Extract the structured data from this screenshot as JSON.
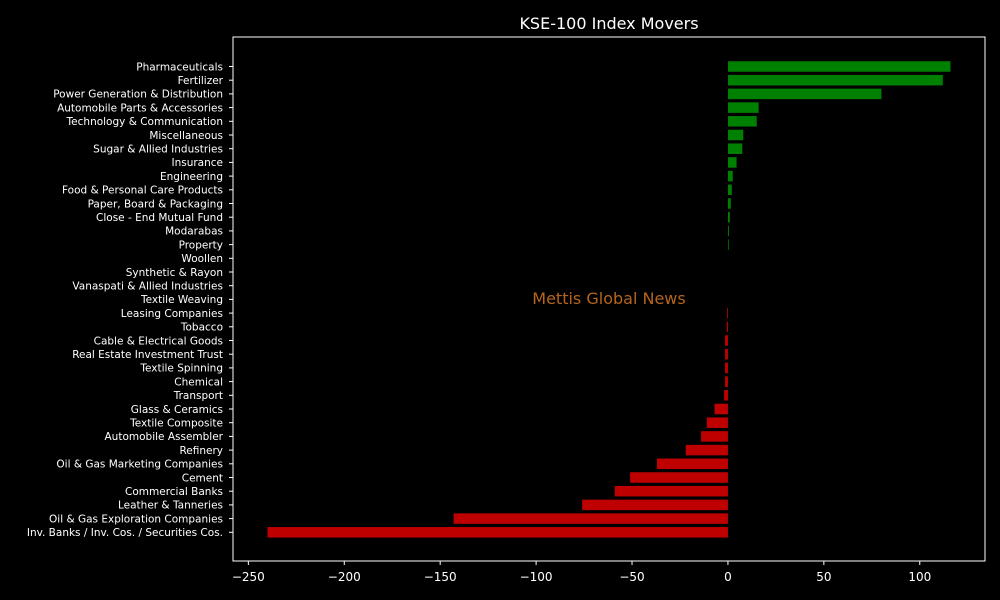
{
  "chart_data": {
    "type": "bar",
    "orientation": "horizontal",
    "title": "KSE-100 Index Movers",
    "xlabel": "",
    "ylabel": "",
    "xlim": [
      -258,
      134
    ],
    "xticks": [
      -250,
      -200,
      -150,
      -100,
      -50,
      0,
      50,
      100
    ],
    "xtick_labels": [
      "−250",
      "−200",
      "−150",
      "−100",
      "−50",
      "0",
      "50",
      "100"
    ],
    "grid": false,
    "categories": [
      "Pharmaceuticals",
      "Fertilizer",
      "Power Generation & Distribution",
      "Automobile Parts & Accessories",
      "Technology & Communication",
      "Miscellaneous",
      "Sugar & Allied Industries",
      "Insurance",
      "Engineering",
      "Food & Personal Care Products",
      "Paper, Board & Packaging",
      "Close - End Mutual Fund",
      "Modarabas",
      "Property",
      "Woollen",
      "Synthetic & Rayon",
      "Vanaspati & Allied Industries",
      "Textile Weaving",
      "Leasing Companies",
      "Tobacco",
      "Cable & Electrical Goods",
      "Real Estate Investment Trust",
      "Textile Spinning",
      "Chemical",
      "Transport",
      "Glass & Ceramics",
      "Textile Composite",
      "Automobile Assembler",
      "Refinery",
      "Oil & Gas Marketing Companies",
      "Cement",
      "Commercial Banks",
      "Leather & Tanneries",
      "Oil & Gas Exploration Companies",
      "Inv. Banks / Inv. Cos. / Securities Cos."
    ],
    "values": [
      116,
      112,
      80,
      16,
      15,
      8,
      7.5,
      4.5,
      2.5,
      2,
      1.5,
      1,
      0.5,
      0.4,
      0,
      0,
      0,
      0,
      -0.4,
      -0.6,
      -1.5,
      -1.5,
      -1.5,
      -1.5,
      -2,
      -7,
      -11,
      -14,
      -22,
      -37,
      -51,
      -59,
      -76,
      -143,
      -240
    ],
    "positive_color": "#008000",
    "negative_color": "#bf0000",
    "watermark": "Mettis Global News",
    "watermark_color": "#b5651d"
  }
}
